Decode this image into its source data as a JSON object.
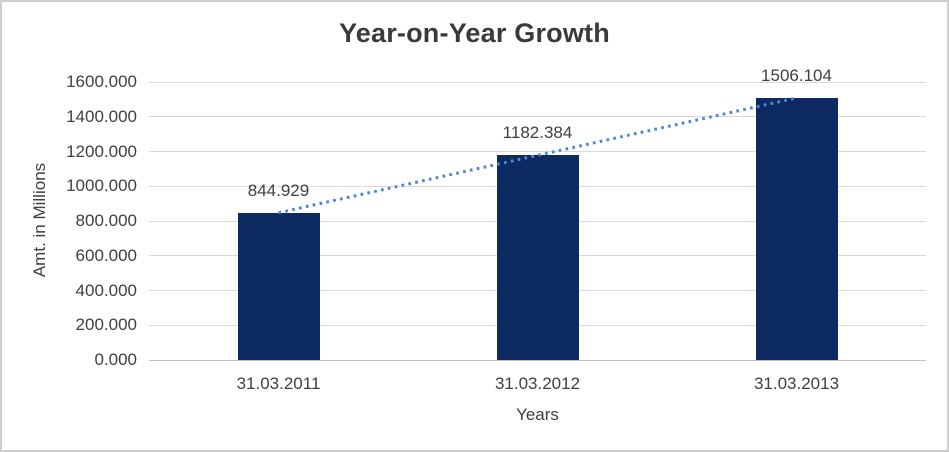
{
  "chart_data": {
    "type": "bar",
    "title": "Year-on-Year Growth",
    "xlabel": "Years",
    "ylabel": "Amt. in Millions",
    "categories": [
      "31.03.2011",
      "31.03.2012",
      "31.03.2013"
    ],
    "values": [
      844.929,
      1182.384,
      1506.104
    ],
    "data_labels": [
      "844.929",
      "1182.384",
      "1506.104"
    ],
    "ylim": [
      0,
      1600
    ],
    "ytick_labels": [
      "0.000",
      "200.000",
      "400.000",
      "600.000",
      "800.000",
      "1000.000",
      "1200.000",
      "1400.000",
      "1600.000"
    ],
    "grid": true,
    "legend": "none",
    "trendline": {
      "type": "linear",
      "style": "dotted"
    },
    "colors": {
      "bar": "#0d2a63",
      "trendline": "#4d86d6",
      "gridline": "#d9d9d9",
      "axis_line": "#bfbfbf",
      "text": "#404040",
      "title_text": "#3a3a3a",
      "chart_border": "#cfcfcf",
      "background": "#ffffff"
    }
  }
}
